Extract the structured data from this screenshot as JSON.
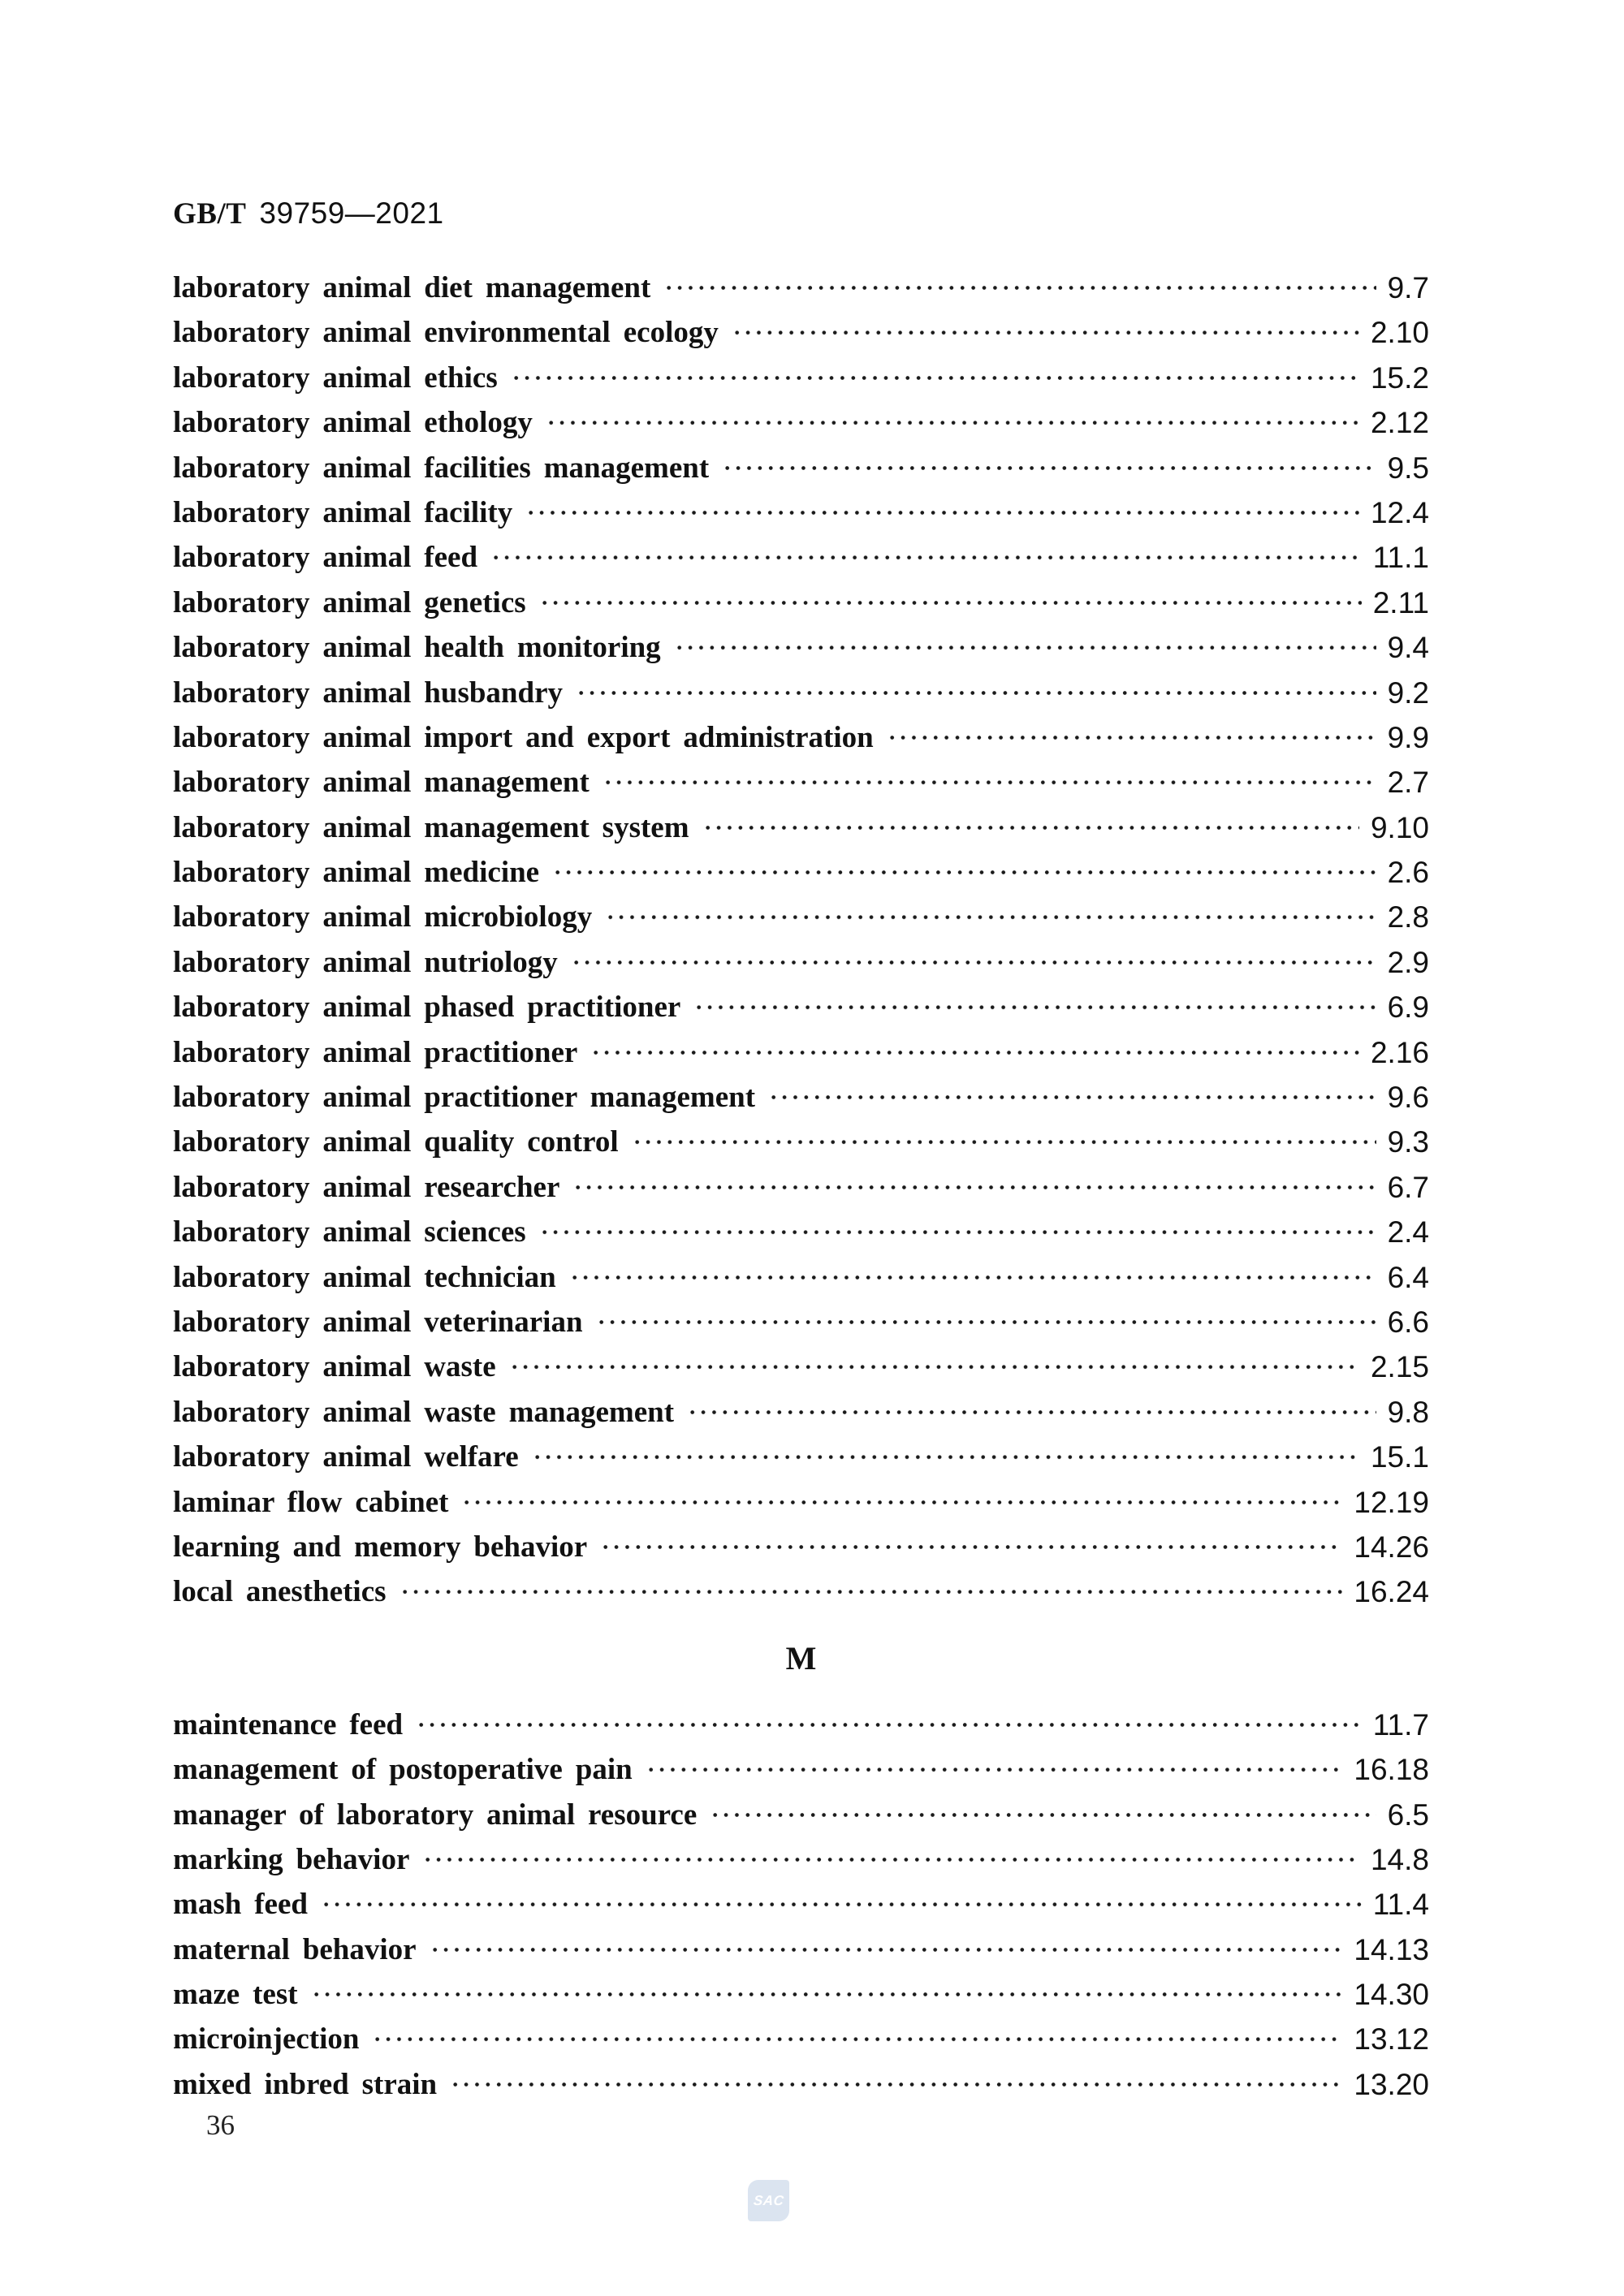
{
  "header": {
    "code": "GB/T",
    "number": "39759—2021"
  },
  "index": {
    "section_heading": "M",
    "entries_l": [
      {
        "term": "laboratory animal diet management",
        "ref": "9.7"
      },
      {
        "term": "laboratory animal environmental ecology",
        "ref": "2.10"
      },
      {
        "term": "laboratory animal ethics",
        "ref": "15.2"
      },
      {
        "term": "laboratory animal ethology",
        "ref": "2.12"
      },
      {
        "term": "laboratory animal facilities management",
        "ref": "9.5"
      },
      {
        "term": "laboratory animal facility",
        "ref": "12.4"
      },
      {
        "term": "laboratory animal feed",
        "ref": "11.1"
      },
      {
        "term": "laboratory animal genetics",
        "ref": "2.11"
      },
      {
        "term": "laboratory animal health monitoring",
        "ref": "9.4"
      },
      {
        "term": "laboratory animal husbandry",
        "ref": "9.2"
      },
      {
        "term": "laboratory animal import and export administration",
        "ref": "9.9"
      },
      {
        "term": "laboratory animal management",
        "ref": "2.7"
      },
      {
        "term": "laboratory animal management system",
        "ref": "9.10"
      },
      {
        "term": "laboratory animal medicine",
        "ref": "2.6"
      },
      {
        "term": "laboratory animal microbiology",
        "ref": "2.8"
      },
      {
        "term": "laboratory animal nutriology",
        "ref": "2.9"
      },
      {
        "term": "laboratory animal phased practitioner",
        "ref": "6.9"
      },
      {
        "term": "laboratory animal practitioner",
        "ref": "2.16"
      },
      {
        "term": "laboratory animal practitioner management",
        "ref": "9.6"
      },
      {
        "term": "laboratory animal quality control",
        "ref": "9.3"
      },
      {
        "term": "laboratory animal researcher",
        "ref": "6.7"
      },
      {
        "term": "laboratory animal sciences",
        "ref": "2.4"
      },
      {
        "term": "laboratory animal technician",
        "ref": "6.4"
      },
      {
        "term": "laboratory animal veterinarian",
        "ref": "6.6"
      },
      {
        "term": "laboratory animal waste",
        "ref": "2.15"
      },
      {
        "term": "laboratory animal waste management",
        "ref": "9.8"
      },
      {
        "term": "laboratory animal welfare",
        "ref": "15.1"
      },
      {
        "term": "laminar flow cabinet",
        "ref": "12.19"
      },
      {
        "term": "learning and memory behavior",
        "ref": "14.26"
      },
      {
        "term": "local anesthetics",
        "ref": "16.24"
      }
    ],
    "entries_m": [
      {
        "term": "maintenance feed",
        "ref": "11.7"
      },
      {
        "term": "management of postoperative pain",
        "ref": "16.18"
      },
      {
        "term": "manager of laboratory animal resource",
        "ref": "6.5"
      },
      {
        "term": "marking behavior",
        "ref": "14.8"
      },
      {
        "term": "mash feed",
        "ref": "11.4"
      },
      {
        "term": "maternal behavior",
        "ref": "14.13"
      },
      {
        "term": "maze test",
        "ref": "14.30"
      },
      {
        "term": "microinjection",
        "ref": "13.12"
      },
      {
        "term": "mixed inbred strain",
        "ref": "13.20"
      }
    ]
  },
  "footer": {
    "page_number": "36",
    "logo_text": "SAC",
    "logo_bg_color": "#dbe4f0",
    "logo_text_color": "#ffffff"
  }
}
